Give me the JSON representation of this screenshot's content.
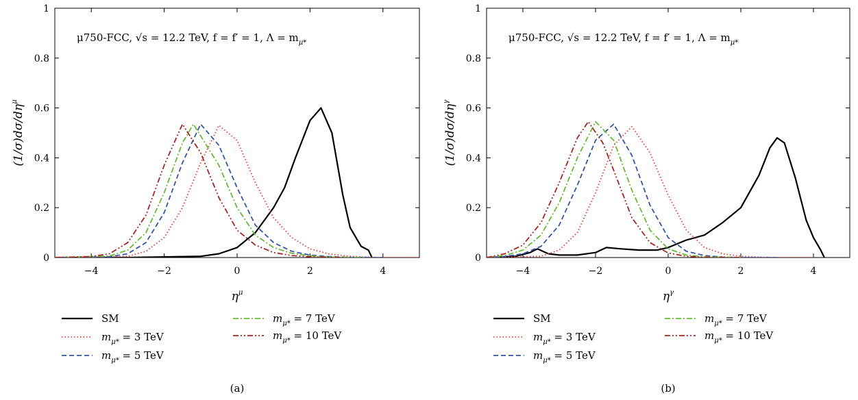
{
  "chart_data": [
    {
      "type": "line",
      "panel_label": "(a)",
      "xlabel": "η",
      "xlabel_sup": "μ",
      "ylabel": "(1/σ)dσ/dη",
      "ylabel_sup": "μ",
      "xlim": [
        -5,
        5
      ],
      "ylim": [
        0,
        1
      ],
      "xticks": [
        -4,
        -2,
        0,
        2,
        4
      ],
      "yticks": [
        0,
        0.2,
        0.4,
        0.6,
        0.8,
        1
      ],
      "xtick_labels": [
        "−4",
        "−2",
        "0",
        "2",
        "4"
      ],
      "ytick_labels": [
        "0",
        "0.2",
        "0.4",
        "0.6",
        "0.8",
        "1"
      ],
      "annotation": "μ750-FCC, √s = 12.2 TeV, f = f′ = 1, Λ = m",
      "annotation_sub": "μ*",
      "legend_position": "below",
      "series": [
        {
          "name": "SM",
          "color": "#000000",
          "dash": "solid",
          "x": [
            -5,
            -3,
            -1,
            -0.5,
            0,
            0.5,
            1,
            1.3,
            1.6,
            2.0,
            2.3,
            2.6,
            2.9,
            3.1,
            3.4,
            3.6,
            3.7
          ],
          "y": [
            0,
            0,
            0.005,
            0.015,
            0.04,
            0.1,
            0.2,
            0.28,
            0.4,
            0.55,
            0.6,
            0.5,
            0.25,
            0.12,
            0.045,
            0.03,
            0
          ]
        },
        {
          "name": "m = 3 TeV",
          "color": "#ff3333",
          "dash": "1.5,3",
          "x": [
            -5,
            -3,
            -2.5,
            -2,
            -1.5,
            -1,
            -0.5,
            0,
            0.5,
            1,
            1.5,
            2,
            2.5,
            3,
            3.5,
            4,
            5
          ],
          "y": [
            0,
            0.005,
            0.025,
            0.08,
            0.2,
            0.38,
            0.53,
            0.47,
            0.3,
            0.16,
            0.08,
            0.035,
            0.015,
            0.006,
            0.002,
            0,
            0
          ]
        },
        {
          "name": "m = 5 TeV",
          "color": "#3355aa",
          "dash": "7,4",
          "x": [
            -5,
            -3.5,
            -3,
            -2.5,
            -2,
            -1.5,
            -1,
            -0.5,
            0,
            0.5,
            1,
            1.5,
            2,
            2.5,
            3,
            3.5,
            4
          ],
          "y": [
            0,
            0.003,
            0.015,
            0.06,
            0.18,
            0.38,
            0.535,
            0.45,
            0.28,
            0.13,
            0.06,
            0.025,
            0.01,
            0.004,
            0.001,
            0,
            0
          ]
        },
        {
          "name": "m = 7 TeV",
          "color": "#66bb33",
          "dash": "8,3,2,3",
          "x": [
            -5,
            -3.5,
            -3,
            -2.5,
            -2,
            -1.5,
            -1.2,
            -0.5,
            0,
            0.5,
            1,
            1.5,
            2,
            2.5,
            3,
            3.5
          ],
          "y": [
            0,
            0.006,
            0.03,
            0.1,
            0.26,
            0.46,
            0.535,
            0.37,
            0.2,
            0.09,
            0.04,
            0.017,
            0.007,
            0.002,
            0.001,
            0
          ]
        },
        {
          "name": "m = 10 TeV",
          "color": "#aa2222",
          "dash": "8,3,2,3,2,3",
          "x": [
            -5,
            -4,
            -3.5,
            -3,
            -2.5,
            -2,
            -1.5,
            -1,
            -0.5,
            0,
            0.5,
            1,
            1.5,
            2,
            2.5,
            3
          ],
          "y": [
            0,
            0.004,
            0.015,
            0.06,
            0.17,
            0.37,
            0.535,
            0.42,
            0.24,
            0.11,
            0.05,
            0.02,
            0.008,
            0.003,
            0.001,
            0
          ]
        }
      ]
    },
    {
      "type": "line",
      "panel_label": "(b)",
      "xlabel": "η",
      "xlabel_sup": "γ",
      "ylabel": "(1/σ)dσ/dη",
      "ylabel_sup": "γ",
      "xlim": [
        -5,
        5
      ],
      "ylim": [
        0,
        1
      ],
      "xticks": [
        -4,
        -2,
        0,
        2,
        4
      ],
      "yticks": [
        0,
        0.2,
        0.4,
        0.6,
        0.8,
        1
      ],
      "xtick_labels": [
        "−4",
        "−2",
        "0",
        "2",
        "4"
      ],
      "ytick_labels": [
        "0",
        "0.2",
        "0.4",
        "0.6",
        "0.8",
        "1"
      ],
      "annotation": "μ750-FCC, √s = 12.2 TeV, f = f′ = 1, Λ = m",
      "annotation_sub": "μ*",
      "legend_position": "below",
      "series": [
        {
          "name": "SM",
          "color": "#000000",
          "dash": "solid",
          "x": [
            -5,
            -4.2,
            -3.8,
            -3.6,
            -3.3,
            -3,
            -2.5,
            -2,
            -1.7,
            -1.3,
            -0.8,
            -0.3,
            0,
            0.5,
            1,
            1.5,
            2,
            2.5,
            2.8,
            3.0,
            3.2,
            3.5,
            3.8,
            4,
            4.2,
            4.3
          ],
          "y": [
            0,
            0.005,
            0.02,
            0.035,
            0.015,
            0.01,
            0.01,
            0.02,
            0.04,
            0.035,
            0.03,
            0.03,
            0.04,
            0.07,
            0.09,
            0.14,
            0.2,
            0.33,
            0.44,
            0.48,
            0.46,
            0.32,
            0.15,
            0.08,
            0.03,
            0
          ]
        },
        {
          "name": "m = 3 TeV",
          "color": "#ff3333",
          "dash": "1.5,3",
          "x": [
            -5,
            -3.5,
            -3,
            -2.5,
            -2,
            -1.5,
            -1,
            -0.5,
            0,
            0.5,
            1,
            1.5,
            2,
            2.5,
            3,
            4
          ],
          "y": [
            0,
            0.005,
            0.03,
            0.1,
            0.26,
            0.45,
            0.525,
            0.42,
            0.25,
            0.11,
            0.04,
            0.015,
            0.005,
            0.002,
            0,
            0
          ]
        },
        {
          "name": "m = 5 TeV",
          "color": "#3355aa",
          "dash": "7,4",
          "x": [
            -5,
            -4.5,
            -4,
            -3.5,
            -3,
            -2.5,
            -2,
            -1.5,
            -1,
            -0.5,
            0,
            0.5,
            1,
            1.5,
            2,
            3
          ],
          "y": [
            0,
            0.004,
            0.015,
            0.045,
            0.13,
            0.29,
            0.47,
            0.535,
            0.41,
            0.21,
            0.08,
            0.025,
            0.008,
            0.002,
            0,
            0
          ]
        },
        {
          "name": "m = 7 TeV",
          "color": "#66bb33",
          "dash": "8,3,2,3",
          "x": [
            -5,
            -4.5,
            -4,
            -3.5,
            -3,
            -2.5,
            -2,
            -1.5,
            -1,
            -0.5,
            0,
            0.5,
            1,
            2
          ],
          "y": [
            0,
            0.008,
            0.03,
            0.09,
            0.22,
            0.4,
            0.545,
            0.47,
            0.27,
            0.11,
            0.035,
            0.01,
            0.003,
            0
          ]
        },
        {
          "name": "m = 10 TeV",
          "color": "#aa2222",
          "dash": "8,3,2,3,2,3",
          "x": [
            -5,
            -4.5,
            -4,
            -3.5,
            -3,
            -2.5,
            -2.2,
            -1.8,
            -1.5,
            -1,
            -0.5,
            0,
            0.5,
            1,
            2
          ],
          "y": [
            0,
            0.015,
            0.05,
            0.14,
            0.3,
            0.48,
            0.545,
            0.46,
            0.35,
            0.16,
            0.06,
            0.018,
            0.005,
            0.001,
            0
          ]
        }
      ]
    }
  ],
  "legend": {
    "sm_label": "SM",
    "mass_prefix": "m",
    "mass_sub": "μ*",
    "items": [
      {
        "key": "SM",
        "text": "SM"
      },
      {
        "key": "3",
        "text": " = 3 TeV"
      },
      {
        "key": "5",
        "text": " = 5 TeV"
      },
      {
        "key": "7",
        "text": " = 7 TeV"
      },
      {
        "key": "10",
        "text": " = 10 TeV"
      }
    ]
  }
}
